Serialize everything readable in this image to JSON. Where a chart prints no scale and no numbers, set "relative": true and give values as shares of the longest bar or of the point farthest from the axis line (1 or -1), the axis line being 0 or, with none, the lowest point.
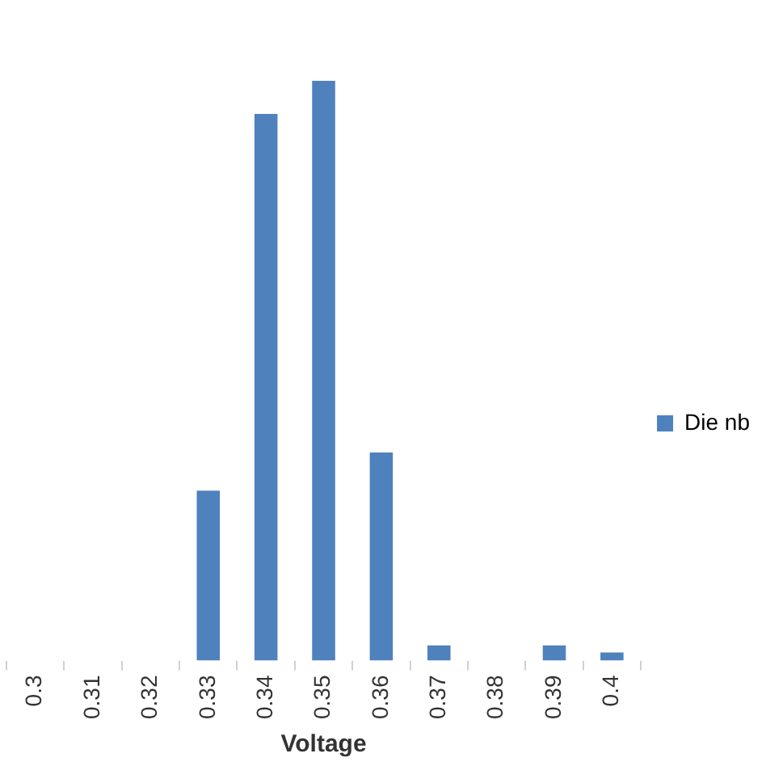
{
  "chart_data": {
    "type": "bar",
    "xlabel": "Voltage",
    "categories": [
      "0.3",
      "0.31",
      "0.32",
      "0.33",
      "0.34",
      "0.35",
      "0.36",
      "0.37",
      "0.38",
      "0.39",
      "0.4"
    ],
    "series": [
      {
        "name": "Die nb",
        "color": "#4f81bd",
        "values": [
          0,
          0,
          0,
          0.293,
          0.943,
          1,
          0.359,
          0.026,
          0,
          0.026,
          0.014
        ]
      }
    ],
    "relative": true,
    "legend": "right"
  }
}
